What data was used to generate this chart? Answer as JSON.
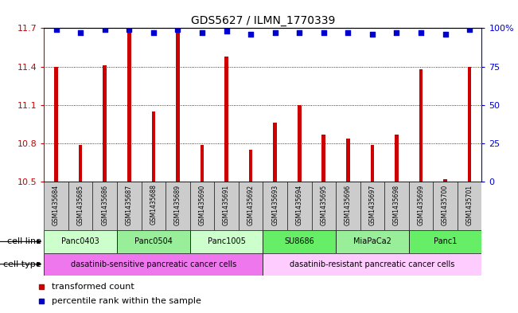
{
  "title": "GDS5627 / ILMN_1770339",
  "samples": [
    "GSM1435684",
    "GSM1435685",
    "GSM1435686",
    "GSM1435687",
    "GSM1435688",
    "GSM1435689",
    "GSM1435690",
    "GSM1435691",
    "GSM1435692",
    "GSM1435693",
    "GSM1435694",
    "GSM1435695",
    "GSM1435696",
    "GSM1435697",
    "GSM1435698",
    "GSM1435699",
    "GSM1435700",
    "GSM1435701"
  ],
  "bar_values": [
    11.4,
    10.79,
    11.41,
    11.68,
    11.05,
    11.69,
    10.79,
    11.48,
    10.75,
    10.96,
    11.1,
    10.87,
    10.84,
    10.79,
    10.87,
    11.38,
    10.52,
    11.4
  ],
  "percentile_values": [
    99,
    97,
    99,
    99,
    97,
    99,
    97,
    98,
    96,
    97,
    97,
    97,
    97,
    96,
    97,
    97,
    96,
    99
  ],
  "ylim_left": [
    10.5,
    11.7
  ],
  "ylim_right": [
    0,
    100
  ],
  "yticks_left": [
    10.5,
    10.8,
    11.1,
    11.4,
    11.7
  ],
  "yticks_right": [
    0,
    25,
    50,
    75,
    100
  ],
  "left_axis_color": "#cc0000",
  "right_axis_color": "#0000cc",
  "bar_color": "#cc0000",
  "dot_color": "#0000cc",
  "cell_lines": [
    {
      "name": "Panc0403",
      "start": 0,
      "end": 2,
      "color": "#ccffcc"
    },
    {
      "name": "Panc0504",
      "start": 3,
      "end": 5,
      "color": "#99ee99"
    },
    {
      "name": "Panc1005",
      "start": 6,
      "end": 8,
      "color": "#ccffcc"
    },
    {
      "name": "SU8686",
      "start": 9,
      "end": 11,
      "color": "#66ee66"
    },
    {
      "name": "MiaPaCa2",
      "start": 12,
      "end": 14,
      "color": "#99ee99"
    },
    {
      "name": "Panc1",
      "start": 15,
      "end": 17,
      "color": "#66ee66"
    }
  ],
  "cell_types": [
    {
      "name": "dasatinib-sensitive pancreatic cancer cells",
      "start": 0,
      "end": 8,
      "color": "#ee77ee"
    },
    {
      "name": "dasatinib-resistant pancreatic cancer cells",
      "start": 9,
      "end": 17,
      "color": "#ffccff"
    }
  ],
  "legend_items": [
    {
      "label": "transformed count",
      "color": "#cc0000"
    },
    {
      "label": "percentile rank within the sample",
      "color": "#0000cc"
    }
  ],
  "xticklabel_bg": "#cccccc",
  "bar_width": 0.15
}
